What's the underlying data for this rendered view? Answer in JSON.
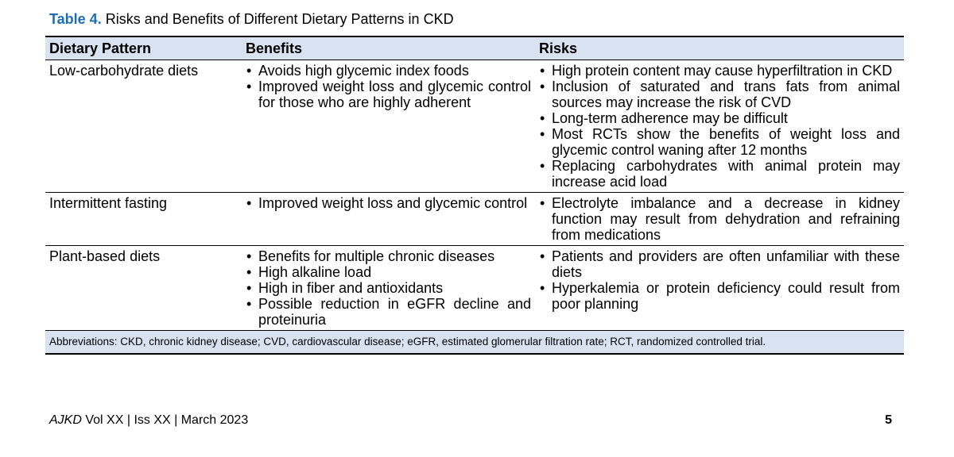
{
  "caption": {
    "label": "Table 4.",
    "title": "Risks and Benefits of Different Dietary Patterns in CKD"
  },
  "table": {
    "headers": [
      "Dietary Pattern",
      "Benefits",
      "Risks"
    ],
    "rows": [
      {
        "pattern": "Low-carbohydrate diets",
        "benefits": [
          "Avoids high glycemic index foods",
          "Improved weight loss and glycemic control for those who are highly adherent"
        ],
        "risks": [
          "High protein content may cause hyperfiltration in CKD",
          "Inclusion of saturated and trans fats from animal sources may increase the risk of CVD",
          "Long-term adherence may be difficult",
          "Most RCTs show the benefits of weight loss and glycemic control waning after 12 months",
          "Replacing carbohydrates with animal protein may increase acid load"
        ]
      },
      {
        "pattern": "Intermittent fasting",
        "benefits": [
          "Improved weight loss and glycemic control"
        ],
        "risks": [
          "Electrolyte imbalance and a decrease in kidney function may result from dehydration and refraining from medications"
        ]
      },
      {
        "pattern": "Plant-based diets",
        "benefits": [
          "Benefits for multiple chronic diseases",
          "High alkaline load",
          "High in fiber and antioxidants",
          "Possible reduction in eGFR decline and proteinuria"
        ],
        "risks": [
          "Patients and providers are often unfamiliar with these diets",
          "Hyperkalemia or protein deficiency could result from poor planning"
        ]
      }
    ],
    "footnote": "Abbreviations: CKD, chronic kidney disease; CVD, cardiovascular disease; eGFR, estimated glomerular filtration rate; RCT, randomized controlled trial."
  },
  "footer": {
    "journal": "AJKD",
    "issue": "Vol XX | Iss XX | March 2023",
    "page_number": "5"
  },
  "colors": {
    "accent": "#1e6db4",
    "header_fill": "#d9e2f0"
  }
}
